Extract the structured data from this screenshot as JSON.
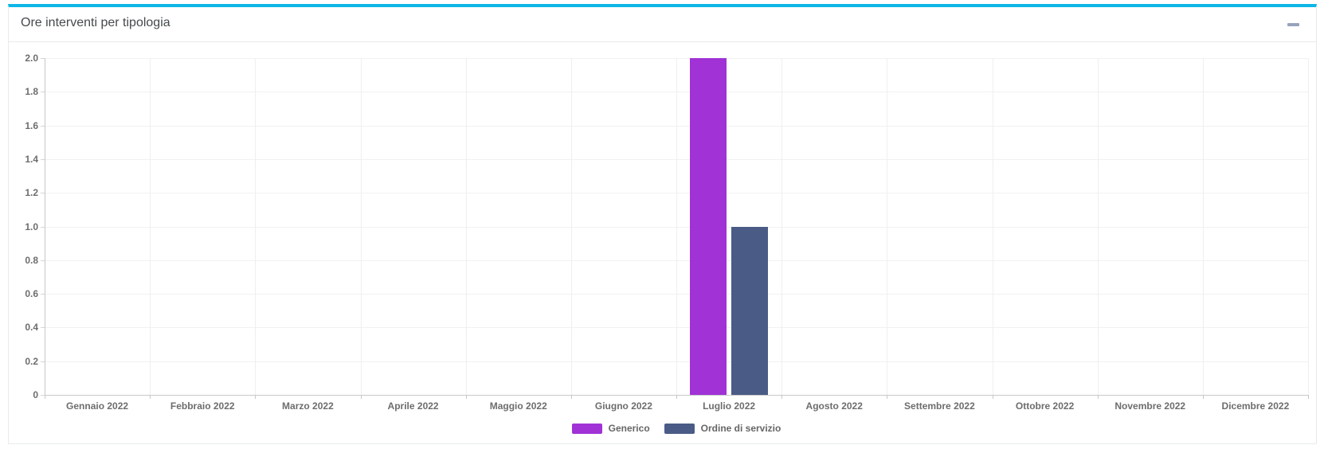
{
  "panel": {
    "title": "Ore interventi per tipologia",
    "accent_color": "#0db6e6",
    "collapse_icon": "minus"
  },
  "chart_data": {
    "type": "bar",
    "title": "Ore interventi per tipologia",
    "categories": [
      "Gennaio 2022",
      "Febbraio 2022",
      "Marzo 2022",
      "Aprile 2022",
      "Maggio 2022",
      "Giugno 2022",
      "Luglio 2022",
      "Agosto 2022",
      "Settembre 2022",
      "Ottobre 2022",
      "Novembre 2022",
      "Dicembre 2022"
    ],
    "series": [
      {
        "name": "Generico",
        "color": "#a032d6",
        "values": [
          0,
          0,
          0,
          0,
          0,
          0,
          2,
          0,
          0,
          0,
          0,
          0
        ]
      },
      {
        "name": "Ordine di servizio",
        "color": "#4a5b85",
        "values": [
          0,
          0,
          0,
          0,
          0,
          0,
          1,
          0,
          0,
          0,
          0,
          0
        ]
      }
    ],
    "xlabel": "",
    "ylabel": "",
    "ylim": [
      0,
      2.0
    ],
    "ytick_step": 0.2,
    "grid": true,
    "legend_position": "bottom"
  }
}
